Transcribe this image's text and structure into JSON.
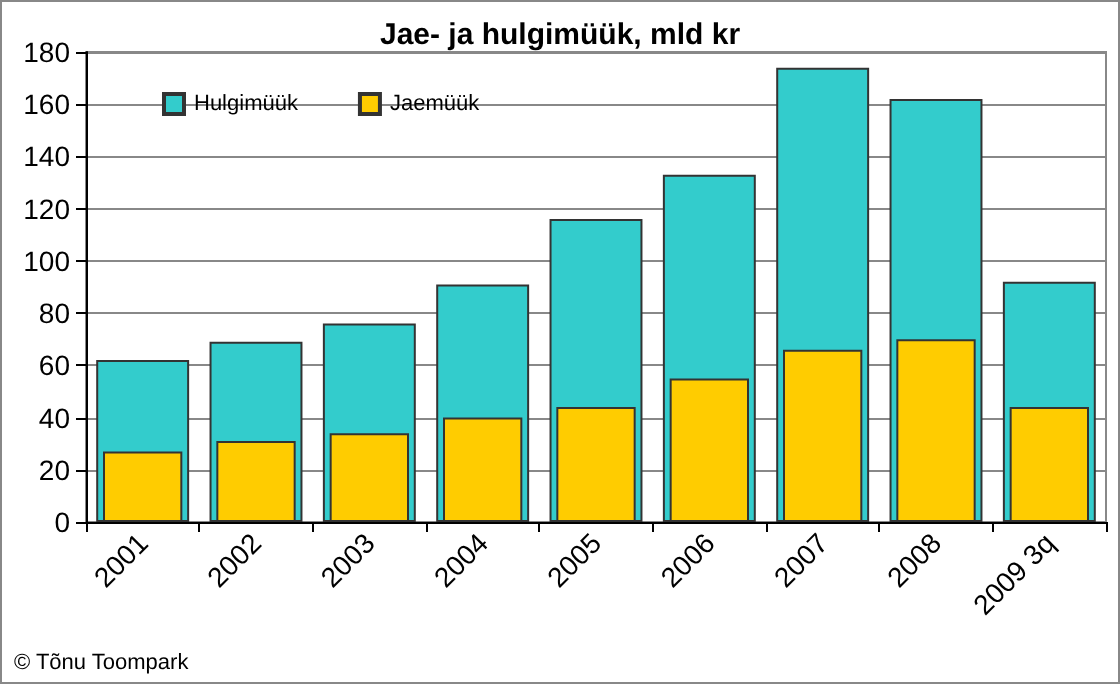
{
  "chart_data": {
    "type": "bar",
    "title": "Jae- ja hulgimüük, mld kr",
    "categories": [
      "2001",
      "2002",
      "2003",
      "2004",
      "2005",
      "2006",
      "2007",
      "2008",
      "2009 3q"
    ],
    "series": [
      {
        "name": "Hulgimüük",
        "color": "#33cccc",
        "values": [
          62,
          69,
          76,
          91,
          116,
          133,
          174,
          162,
          92
        ]
      },
      {
        "name": "Jaemüük",
        "color": "#ffcc00",
        "values": [
          27,
          31,
          34,
          40,
          44,
          55,
          66,
          70,
          44
        ]
      }
    ],
    "ylim": [
      0,
      180
    ],
    "yticks": [
      0,
      20,
      40,
      60,
      80,
      100,
      120,
      140,
      160,
      180
    ],
    "grid": "y",
    "legend": "top left",
    "annotations": [
      "© Tõnu Toompark"
    ]
  }
}
